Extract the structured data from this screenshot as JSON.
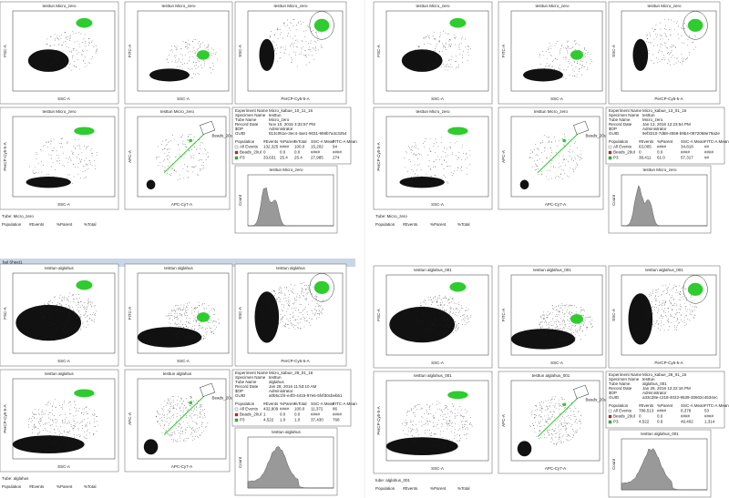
{
  "sheet_tab": "bal Sheet1",
  "quadrants": [
    {
      "plots": [
        {
          "title": "testtun Micro_zero",
          "x_label": "SSC-A",
          "y_label": "FSC-A"
        },
        {
          "title": "testtun Micro_zero",
          "x_label": "SSC-A",
          "y_label": "FITC-A"
        },
        {
          "title": "testtun Micro_zero",
          "x_label": "PerCP-Cy5-5-A",
          "y_label": "SSC-A"
        },
        {
          "title": "testtun Micro_zero",
          "x_label": "SSC-A",
          "y_label": "PerCP-Cy5-5-A"
        },
        {
          "title": "testtun Micro_zero",
          "x_label": "APC-Cy7-A",
          "y_label": "APC-A",
          "gate": "Beads_20ul"
        }
      ],
      "histogram": {
        "title": "testtun Micro_zero",
        "y_label": "Count"
      },
      "info": [
        [
          "Experiment Name",
          "Micro_kabue_10_11_15"
        ],
        [
          "Specimen Name",
          "testtun"
        ],
        [
          "Tube Name",
          "Micro_zero"
        ],
        [
          "Record Date",
          "Nov 10, 2015 3:32:57 PM"
        ],
        [
          "$OP",
          "Administrator"
        ],
        [
          "GUID",
          "813c051e-3ec4-4ae1-9031-959b7a4c3254"
        ]
      ],
      "pop_header": [
        "Population",
        "#Events",
        "%Parent",
        "%Total",
        "SSC-A Mean",
        "FITC-A Mean"
      ],
      "pop_rows": [
        [
          "All Events",
          "132,325",
          "####",
          "100.0",
          "15,202",
          "94"
        ],
        [
          "Beads_20ul",
          "0",
          "0.0",
          "0.0",
          "####",
          "####"
        ],
        [
          "P3",
          "33,631",
          "25.4",
          "25.4",
          "27,985",
          "274"
        ]
      ],
      "tube": "Tube:  Micro_zero",
      "bottom_header": [
        "Population",
        "#Events",
        "%Parent",
        "%Total"
      ]
    },
    {
      "plots": [
        {
          "title": "testtun Micro_zero",
          "x_label": "SSC-A",
          "y_label": "FSC-A"
        },
        {
          "title": "testtun Micro_zero",
          "x_label": "SSC-A",
          "y_label": "FITC-A"
        },
        {
          "title": "testtun Micro_zero",
          "x_label": "PerCP-Cy5-5-A",
          "y_label": "SSC-A"
        },
        {
          "title": "testtun Micro_zero",
          "x_label": "SSC-A",
          "y_label": "PerCP-Cy5-5-A"
        },
        {
          "title": "testtun Micro_zero",
          "x_label": "APC-Cy7-A",
          "y_label": "APC-A",
          "gate": "Beads_20ul"
        }
      ],
      "histogram": {
        "title": "testtun Micro_zero",
        "y_label": "Count"
      },
      "info": [
        [
          "Experiment Name",
          "Micro_kabue_13_01_16"
        ],
        [
          "Specimen Name",
          "testtun"
        ],
        [
          "Tube Name",
          "Micro_zero"
        ],
        [
          "Record Date",
          "Jan 13, 2016 12:23:54 PM"
        ],
        [
          "$OP",
          "Administrator"
        ],
        [
          "GUID",
          "9ef3210-7d68-4559-b9b4-0972058e79a2e"
        ]
      ],
      "pop_header": [
        "Population",
        "#Events",
        "%Parent",
        "SSC-A Mean",
        "FITC-A Mean"
      ],
      "pop_rows": [
        [
          "All Events",
          "63,005",
          "####",
          "34,818",
          "##"
        ],
        [
          "Beads_20ul",
          "0",
          "0.0",
          "####",
          "####"
        ],
        [
          "P3",
          "38,411",
          "61.0",
          "57,317",
          "##"
        ]
      ],
      "tube": "Tube:  Micro_zero",
      "bottom_header": [
        "Population",
        "#Events",
        "%Parent",
        "%Total"
      ]
    },
    {
      "plots": [
        {
          "title": "testtun alglahus",
          "x_label": "SSC-A",
          "y_label": "FSC-A"
        },
        {
          "title": "testtun alglahus",
          "x_label": "SSC-A",
          "y_label": "FITC-A"
        },
        {
          "title": "testtun alglahus",
          "x_label": "PerCP-Cy5-5-A",
          "y_label": "SSC-A"
        },
        {
          "title": "testtun alglahus",
          "x_label": "SSC-A",
          "y_label": "PerCP-Cy5-5-A"
        },
        {
          "title": "testtun alglahus",
          "x_label": "APC-Cy7-A",
          "y_label": "APC-A",
          "gate": "Beads_20ul"
        }
      ],
      "histogram": {
        "title": "testtun alglahus",
        "y_label": "Count"
      },
      "info": [
        [
          "Experiment Name",
          "Micro_kabue_28_01_16"
        ],
        [
          "Specimen Name",
          "testtun"
        ],
        [
          "Tube Name",
          "alglahus"
        ],
        [
          "Record Date",
          "Jan 28, 2016 11:53:10 AM"
        ],
        [
          "$OP",
          "Administrator"
        ],
        [
          "GUID",
          "a0b5c1f4-e4f3-4415-97e6-5f4f30cbebb1"
        ]
      ],
      "pop_header": [
        "Population",
        "#Events",
        "%Parent",
        "%Total",
        "SSC-A Mean",
        "FITC-A Mean"
      ],
      "pop_rows": [
        [
          "All Events",
          "432,809",
          "####",
          "100.0",
          "11,372",
          "86"
        ],
        [
          "Beads_20ul",
          "1",
          "0.0",
          "0.0",
          "####",
          "####"
        ],
        [
          "P3",
          "4,522",
          "1.0",
          "1.0",
          "37,430",
          "768"
        ]
      ],
      "tube": "Tube:  alglahus",
      "bottom_header": [
        "Population",
        "#Events",
        "%Parent",
        "%Total"
      ]
    },
    {
      "plots": [
        {
          "title": "testtun alglahus_001",
          "x_label": "SSC-A",
          "y_label": "FSC-A"
        },
        {
          "title": "testtun alglahus_001",
          "x_label": "SSC-A",
          "y_label": "FITC-A"
        },
        {
          "title": "testtun alglahus_001",
          "x_label": "PerCP-Cy5-5-A",
          "y_label": "SSC-A"
        },
        {
          "title": "testtun alglahus_001",
          "x_label": "SSC-A",
          "y_label": "PerCP-Cy5-5-A"
        },
        {
          "title": "testtun alglahus_001",
          "x_label": "APC-Cy7-A",
          "y_label": "APC-A",
          "gate": "Beads_20ul"
        }
      ],
      "histogram": {
        "title": "testtun alglahus_001",
        "y_label": "Count"
      },
      "info": [
        [
          "Experiment Name",
          "Micro_kabue_28_01_16"
        ],
        [
          "Specimen Name",
          "testtun"
        ],
        [
          "Tube Name",
          "alglahus_001"
        ],
        [
          "Record Date",
          "Jan 28, 2016 12:22:16 PM"
        ],
        [
          "$OP",
          "Administrator"
        ],
        [
          "GUID",
          "a33c28e-c218-4022-9539-30602c4534ec"
        ]
      ],
      "pop_header": [
        "Population",
        "#Events",
        "%Parent",
        "SSC-A Mean",
        "FITC-A Mean"
      ],
      "pop_rows": [
        [
          "All Events",
          "788,513",
          "####",
          "8,378",
          "53"
        ],
        [
          "Beads_20ul",
          "0",
          "0.0",
          "####",
          "####"
        ],
        [
          "P3",
          "4,522",
          "0.6",
          "49,402",
          "1,314"
        ]
      ],
      "tube": "tube:  alglahus_001",
      "bottom_header": [
        "Population",
        "#Events",
        "%Parent",
        "%Total"
      ]
    }
  ]
}
